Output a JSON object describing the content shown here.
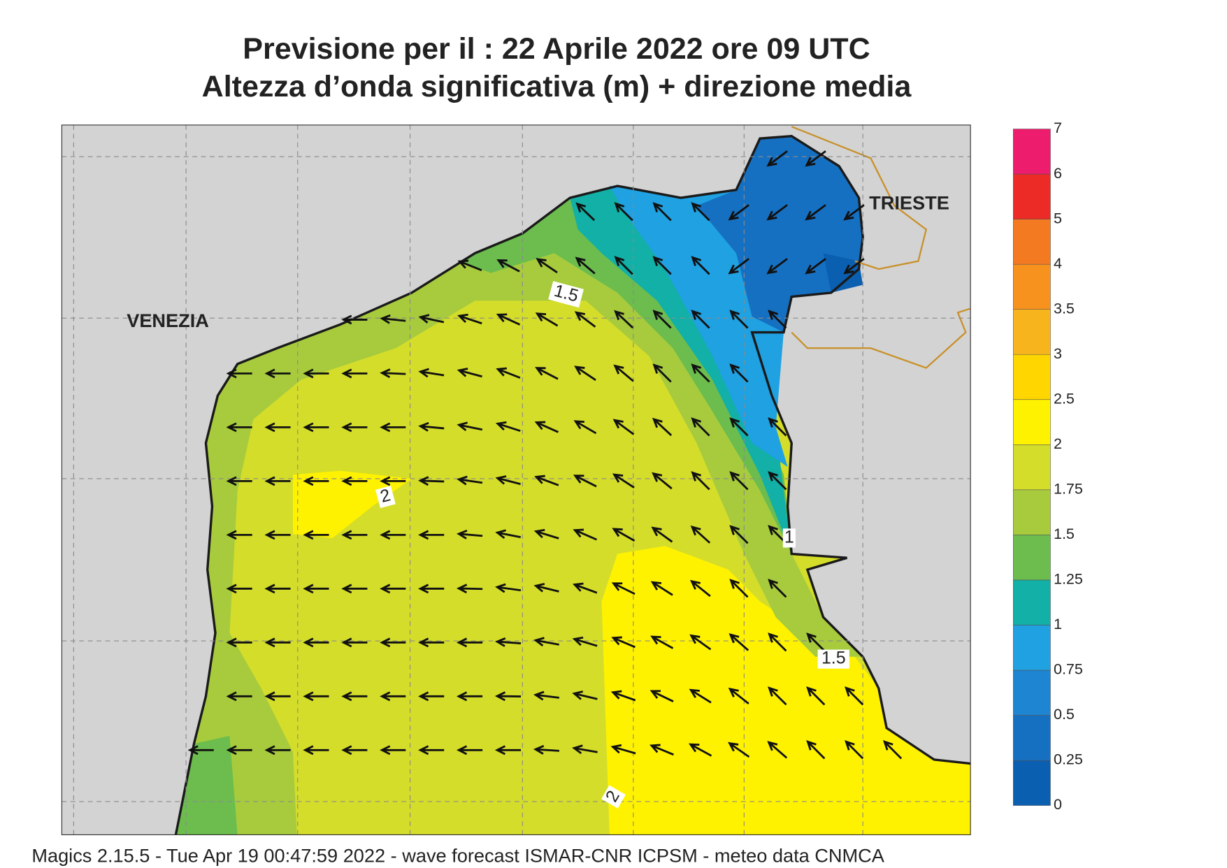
{
  "title": {
    "line1": "Previsione per il  :  22   Aprile  2022   ore 09 UTC",
    "line2": "Altezza d’onda significativa (m) + direzione media"
  },
  "map": {
    "places": [
      "VENEZIA",
      "TRIESTE"
    ],
    "contour_labels": [
      "1.5",
      "2",
      "1",
      "1.5",
      "2"
    ]
  },
  "legend": {
    "ticks": [
      0,
      0.25,
      0.5,
      0.75,
      1,
      1.25,
      1.5,
      1.75,
      2,
      2.5,
      3,
      3.5,
      4,
      5,
      6,
      7
    ],
    "colors": [
      "#0b5fb0",
      "#1670c2",
      "#1e85d2",
      "#1fa1e2",
      "#12b0a6",
      "#6cbd4e",
      "#a7cb3d",
      "#d4dd2a",
      "#fff200",
      "#ffd600",
      "#f8b41d",
      "#f7921f",
      "#f47a22",
      "#ec2a26",
      "#ee1c6d"
    ]
  },
  "footer": "Magics 2.15.5 - Tue Apr 19 00:47:59 2022 - wave forecast  ISMAR-CNR  ICPSM - meteo data   CNMCA"
}
